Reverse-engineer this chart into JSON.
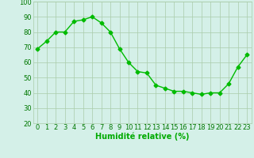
{
  "x": [
    0,
    1,
    2,
    3,
    4,
    5,
    6,
    7,
    8,
    9,
    10,
    11,
    12,
    13,
    14,
    15,
    16,
    17,
    18,
    19,
    20,
    21,
    22,
    23
  ],
  "y": [
    69,
    74,
    80,
    80,
    87,
    88,
    90,
    86,
    80,
    69,
    60,
    54,
    53,
    45,
    43,
    41,
    41,
    40,
    39,
    40,
    40,
    46,
    57,
    65
  ],
  "line_color": "#00bb00",
  "marker": "D",
  "marker_size": 2.5,
  "background_color": "#d4f0e8",
  "grid_color": "#aaccaa",
  "xlabel": "Humidité relative (%)",
  "xlabel_color": "#00aa00",
  "xlabel_fontsize": 7,
  "ylim": [
    20,
    100
  ],
  "xlim": [
    -0.5,
    23.5
  ],
  "yticks": [
    20,
    30,
    40,
    50,
    60,
    70,
    80,
    90,
    100
  ],
  "xticks": [
    0,
    1,
    2,
    3,
    4,
    5,
    6,
    7,
    8,
    9,
    10,
    11,
    12,
    13,
    14,
    15,
    16,
    17,
    18,
    19,
    20,
    21,
    22,
    23
  ],
  "tick_fontsize": 6,
  "tick_color": "#007700"
}
